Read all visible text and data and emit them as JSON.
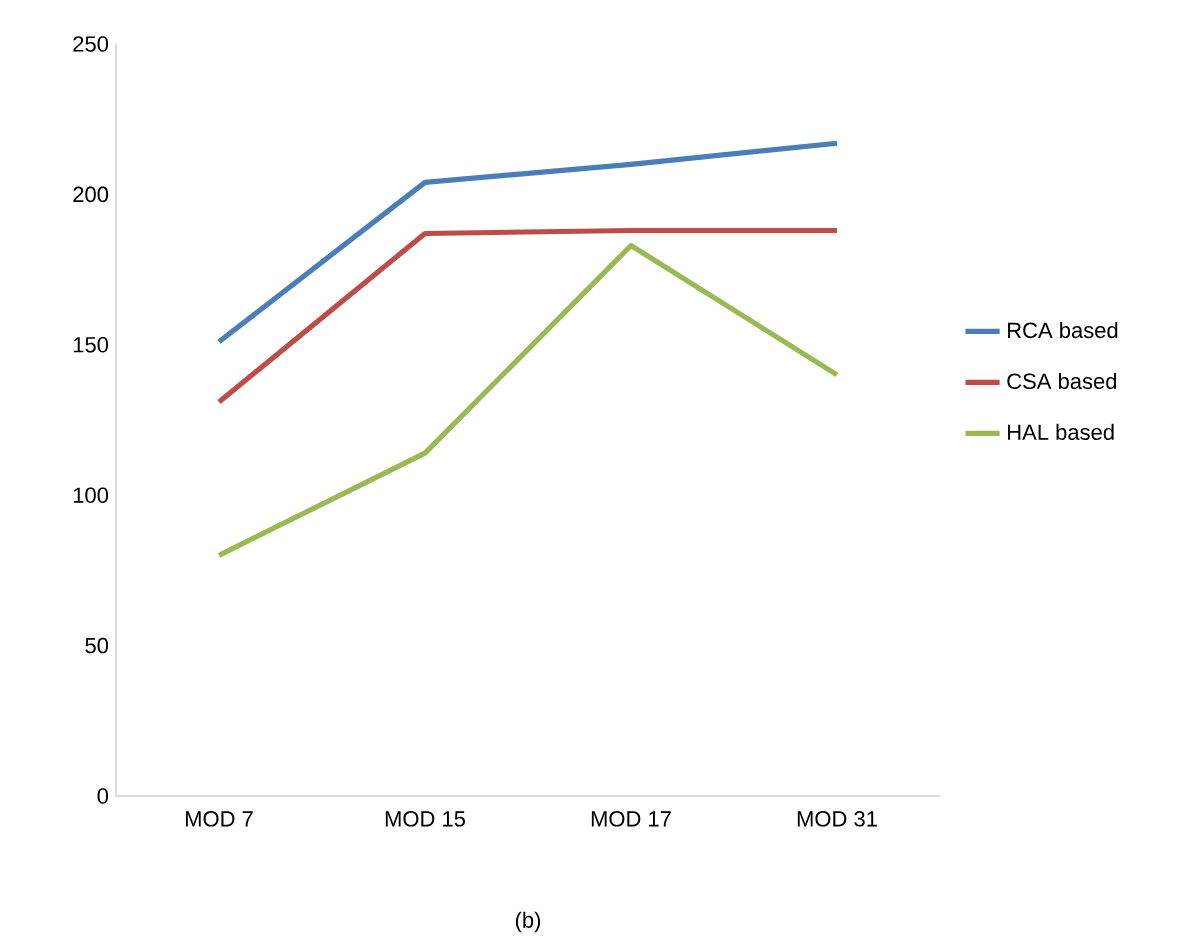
{
  "chart_data": {
    "type": "line",
    "categories": [
      "MOD 7",
      "MOD 15",
      "MOD 17",
      "MOD 31"
    ],
    "series": [
      {
        "name": "RCA based",
        "color": "#4a7ebb",
        "values": [
          151,
          204,
          210,
          217
        ]
      },
      {
        "name": "CSA based",
        "color": "#be4b48",
        "values": [
          131,
          187,
          188,
          188
        ]
      },
      {
        "name": "HAL based",
        "color": "#98b954",
        "values": [
          80,
          114,
          183,
          140
        ]
      }
    ],
    "ylim": [
      0,
      250
    ],
    "yticks": [
      0,
      50,
      100,
      150,
      200,
      250
    ],
    "grid": false,
    "legend": "right",
    "marker": "none",
    "line_style": "solid",
    "annotations": [
      "(b)"
    ]
  }
}
